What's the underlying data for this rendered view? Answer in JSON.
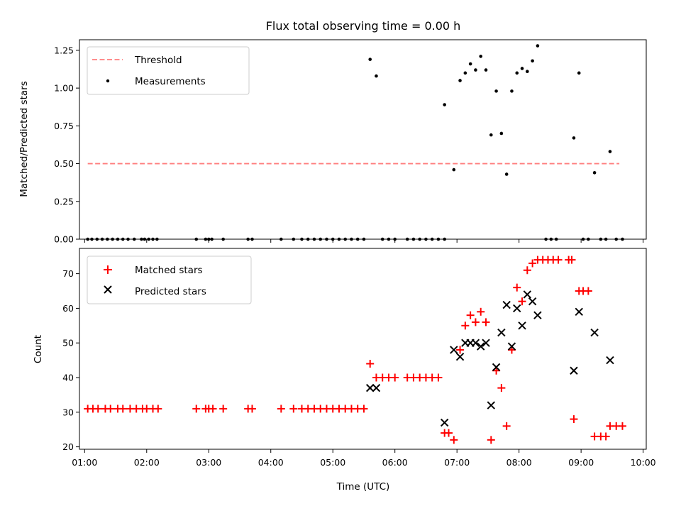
{
  "chart_data": [
    {
      "type": "scatter",
      "title": "Flux total observing time = 0.00 h",
      "ylabel": "Matched/Predicted stars",
      "xlabel": "",
      "xlim": [
        "00:55",
        "10:03"
      ],
      "ylim": [
        0,
        1.32
      ],
      "yticks": [
        "0.00",
        "0.25",
        "0.50",
        "0.75",
        "1.00",
        "1.25"
      ],
      "legend_position": "top-left",
      "colors": {
        "threshold": "#ff7f7f",
        "measurements": "#000000"
      },
      "series": [
        {
          "name": "Threshold",
          "kind": "dashed-line",
          "points": [
            [
              "01:03",
              0.5
            ],
            [
              "09:37",
              0.5
            ]
          ]
        },
        {
          "name": "Measurements",
          "kind": "dot",
          "points": [
            [
              "01:03",
              0
            ],
            [
              "01:07",
              0
            ],
            [
              "01:12",
              0
            ],
            [
              "01:17",
              0
            ],
            [
              "01:22",
              0
            ],
            [
              "01:27",
              0
            ],
            [
              "01:32",
              0
            ],
            [
              "01:37",
              0
            ],
            [
              "01:42",
              0
            ],
            [
              "01:48",
              0
            ],
            [
              "01:55",
              0
            ],
            [
              "01:58",
              0
            ],
            [
              "02:02",
              0
            ],
            [
              "02:06",
              0
            ],
            [
              "02:10",
              0
            ],
            [
              "02:48",
              0
            ],
            [
              "02:57",
              0
            ],
            [
              "03:00",
              0
            ],
            [
              "03:03",
              0
            ],
            [
              "03:14",
              0
            ],
            [
              "03:38",
              0
            ],
            [
              "03:42",
              0
            ],
            [
              "04:10",
              0
            ],
            [
              "04:22",
              0
            ],
            [
              "04:30",
              0
            ],
            [
              "04:36",
              0
            ],
            [
              "04:42",
              0
            ],
            [
              "04:48",
              0
            ],
            [
              "04:54",
              0
            ],
            [
              "05:00",
              0
            ],
            [
              "05:06",
              0
            ],
            [
              "05:12",
              0
            ],
            [
              "05:18",
              0
            ],
            [
              "05:24",
              0
            ],
            [
              "05:30",
              0
            ],
            [
              "05:36",
              1.19
            ],
            [
              "05:42",
              1.08
            ],
            [
              "05:48",
              0
            ],
            [
              "05:54",
              0
            ],
            [
              "06:00",
              0
            ],
            [
              "06:12",
              0
            ],
            [
              "06:18",
              0
            ],
            [
              "06:24",
              0
            ],
            [
              "06:30",
              0
            ],
            [
              "06:36",
              0
            ],
            [
              "06:42",
              0
            ],
            [
              "06:48",
              0
            ],
            [
              "06:48",
              0.89
            ],
            [
              "06:57",
              0.46
            ],
            [
              "07:03",
              1.05
            ],
            [
              "07:08",
              1.1
            ],
            [
              "07:13",
              1.16
            ],
            [
              "07:18",
              1.12
            ],
            [
              "07:23",
              1.21
            ],
            [
              "07:28",
              1.12
            ],
            [
              "07:33",
              0.69
            ],
            [
              "07:38",
              0.98
            ],
            [
              "07:43",
              0.7
            ],
            [
              "07:48",
              0.43
            ],
            [
              "07:53",
              0.98
            ],
            [
              "07:58",
              1.1
            ],
            [
              "08:03",
              1.13
            ],
            [
              "08:08",
              1.11
            ],
            [
              "08:13",
              1.18
            ],
            [
              "08:18",
              1.28
            ],
            [
              "08:26",
              0
            ],
            [
              "08:31",
              0
            ],
            [
              "08:36",
              0
            ],
            [
              "08:53",
              0.67
            ],
            [
              "08:58",
              1.1
            ],
            [
              "09:02",
              0
            ],
            [
              "09:07",
              0
            ],
            [
              "09:13",
              0.44
            ],
            [
              "09:19",
              0
            ],
            [
              "09:24",
              0
            ],
            [
              "09:28",
              0.58
            ],
            [
              "09:34",
              0
            ],
            [
              "09:40",
              0
            ]
          ]
        }
      ]
    },
    {
      "type": "scatter",
      "title": "",
      "ylabel": "Count",
      "xlabel": "Time (UTC)",
      "xlim": [
        "00:55",
        "10:03"
      ],
      "ylim": [
        19.3,
        77.3
      ],
      "yticks": [
        "20",
        "30",
        "40",
        "50",
        "60",
        "70"
      ],
      "xticks": [
        "01:00",
        "02:00",
        "03:00",
        "04:00",
        "05:00",
        "06:00",
        "07:00",
        "08:00",
        "09:00",
        "10:00"
      ],
      "legend_position": "top-left",
      "colors": {
        "matched": "#ff0000",
        "predicted": "#000000"
      },
      "series": [
        {
          "name": "Matched stars",
          "kind": "plus",
          "points": [
            [
              "01:03",
              31
            ],
            [
              "01:08",
              31
            ],
            [
              "01:13",
              31
            ],
            [
              "01:20",
              31
            ],
            [
              "01:25",
              31
            ],
            [
              "01:32",
              31
            ],
            [
              "01:37",
              31
            ],
            [
              "01:44",
              31
            ],
            [
              "01:50",
              31
            ],
            [
              "01:56",
              31
            ],
            [
              "02:00",
              31
            ],
            [
              "02:06",
              31
            ],
            [
              "02:11",
              31
            ],
            [
              "02:48",
              31
            ],
            [
              "02:57",
              31
            ],
            [
              "03:00",
              31
            ],
            [
              "03:04",
              31
            ],
            [
              "03:14",
              31
            ],
            [
              "03:38",
              31
            ],
            [
              "03:42",
              31
            ],
            [
              "04:10",
              31
            ],
            [
              "04:22",
              31
            ],
            [
              "04:30",
              31
            ],
            [
              "04:36",
              31
            ],
            [
              "04:42",
              31
            ],
            [
              "04:48",
              31
            ],
            [
              "04:54",
              31
            ],
            [
              "05:00",
              31
            ],
            [
              "05:06",
              31
            ],
            [
              "05:12",
              31
            ],
            [
              "05:18",
              31
            ],
            [
              "05:24",
              31
            ],
            [
              "05:30",
              31
            ],
            [
              "05:36",
              44
            ],
            [
              "05:42",
              40
            ],
            [
              "05:48",
              40
            ],
            [
              "05:54",
              40
            ],
            [
              "06:00",
              40
            ],
            [
              "06:12",
              40
            ],
            [
              "06:18",
              40
            ],
            [
              "06:24",
              40
            ],
            [
              "06:30",
              40
            ],
            [
              "06:36",
              40
            ],
            [
              "06:42",
              40
            ],
            [
              "06:48",
              24
            ],
            [
              "06:52",
              24
            ],
            [
              "06:57",
              22
            ],
            [
              "07:03",
              48
            ],
            [
              "07:08",
              55
            ],
            [
              "07:13",
              58
            ],
            [
              "07:18",
              56
            ],
            [
              "07:23",
              59
            ],
            [
              "07:28",
              56
            ],
            [
              "07:33",
              22
            ],
            [
              "07:38",
              42
            ],
            [
              "07:43",
              37
            ],
            [
              "07:48",
              26
            ],
            [
              "07:53",
              48
            ],
            [
              "07:58",
              66
            ],
            [
              "08:03",
              62
            ],
            [
              "08:08",
              71
            ],
            [
              "08:13",
              73
            ],
            [
              "08:18",
              74
            ],
            [
              "08:23",
              74
            ],
            [
              "08:28",
              74
            ],
            [
              "08:33",
              74
            ],
            [
              "08:38",
              74
            ],
            [
              "08:48",
              74
            ],
            [
              "08:51",
              74
            ],
            [
              "08:53",
              28
            ],
            [
              "08:58",
              65
            ],
            [
              "09:02",
              65
            ],
            [
              "09:07",
              65
            ],
            [
              "09:13",
              23
            ],
            [
              "09:19",
              23
            ],
            [
              "09:24",
              23
            ],
            [
              "09:28",
              26
            ],
            [
              "09:34",
              26
            ],
            [
              "09:40",
              26
            ]
          ]
        },
        {
          "name": "Predicted stars",
          "kind": "x",
          "points": [
            [
              "05:36",
              37
            ],
            [
              "05:42",
              37
            ],
            [
              "06:48",
              27
            ],
            [
              "06:57",
              48
            ],
            [
              "07:03",
              46
            ],
            [
              "07:08",
              50
            ],
            [
              "07:13",
              50
            ],
            [
              "07:18",
              50
            ],
            [
              "07:23",
              49
            ],
            [
              "07:28",
              50
            ],
            [
              "07:33",
              32
            ],
            [
              "07:38",
              43
            ],
            [
              "07:43",
              53
            ],
            [
              "07:48",
              61
            ],
            [
              "07:53",
              49
            ],
            [
              "07:58",
              60
            ],
            [
              "08:03",
              55
            ],
            [
              "08:08",
              64
            ],
            [
              "08:13",
              62
            ],
            [
              "08:18",
              58
            ],
            [
              "08:53",
              42
            ],
            [
              "08:58",
              59
            ],
            [
              "09:13",
              53
            ],
            [
              "09:28",
              45
            ]
          ]
        }
      ]
    }
  ]
}
